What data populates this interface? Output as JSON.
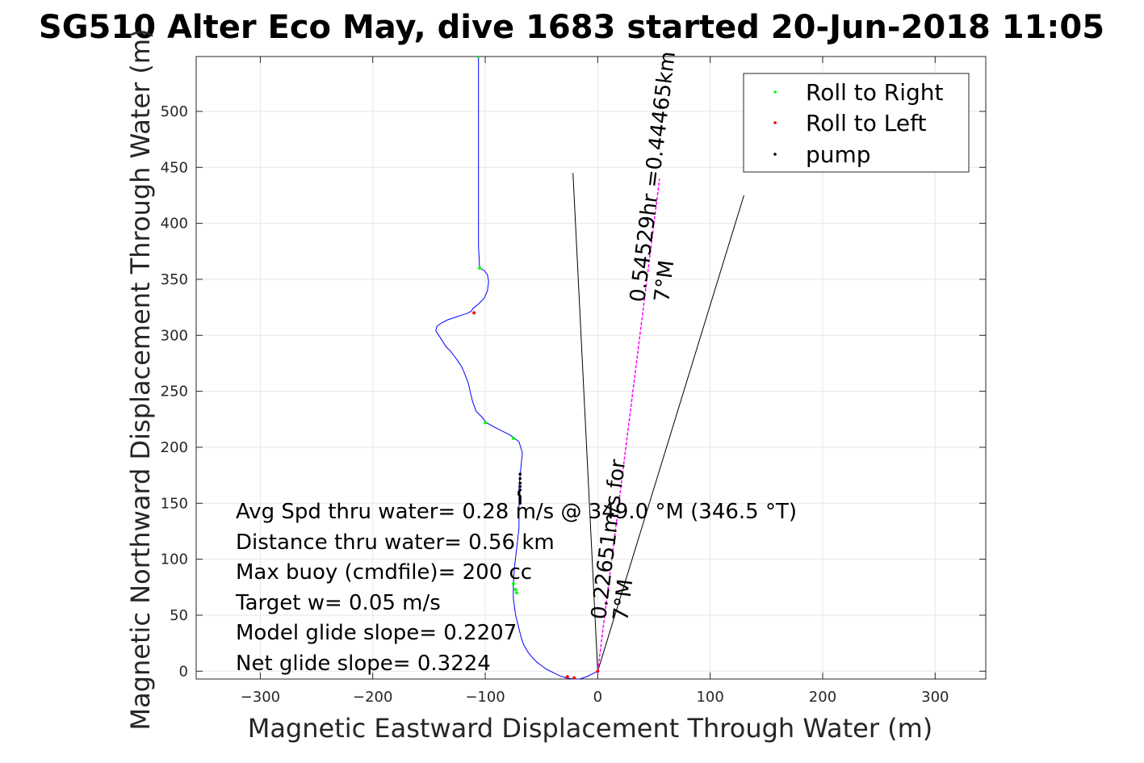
{
  "chart_data": {
    "type": "line",
    "title": "SG510 Alter Eco May, dive 1683 started 20-Jun-2018 11:05",
    "xlabel": "Magnetic Eastward Displacement Through Water (m)",
    "ylabel": "Magnetic Northward Displacement Through Water (m)",
    "xlim": [
      -357,
      345
    ],
    "ylim": [
      -7,
      549
    ],
    "xticks": [
      -300,
      -200,
      -100,
      0,
      100,
      200,
      300
    ],
    "yticks": [
      0,
      50,
      100,
      150,
      200,
      250,
      300,
      350,
      400,
      450,
      500
    ],
    "grid": true,
    "legend": {
      "position": "top-right",
      "entries": [
        {
          "label": "Roll to Right",
          "color": "#00ff00",
          "marker": "dot"
        },
        {
          "label": "Roll to Left",
          "color": "#ff0000",
          "marker": "dot"
        },
        {
          "label": "pump",
          "color": "#000000",
          "marker": "dot"
        }
      ]
    },
    "series": [
      {
        "color": "#0000ff",
        "x": [
          0,
          -4,
          -10,
          -16,
          -22,
          -28,
          -34,
          -40,
          -46,
          -50,
          -54,
          -58,
          -62,
          -66,
          -68,
          -70,
          -73,
          -75,
          -75,
          -74,
          -72,
          -70,
          -70,
          -70,
          -70,
          -69,
          -68,
          -67,
          -70,
          -74,
          -78,
          -84,
          -92,
          -99,
          -103,
          -108,
          -111,
          -113,
          -115,
          -118,
          -121,
          -125,
          -128,
          -131,
          -135,
          -140,
          -144,
          -143,
          -139,
          -133,
          -127,
          -121,
          -115,
          -112,
          -111,
          -106,
          -101,
          -98,
          -97,
          -98,
          -101,
          -105,
          -106,
          -106,
          -106,
          -106,
          -106,
          -106,
          -106,
          -106,
          -106,
          -106
        ],
        "y": [
          0,
          -2,
          -5,
          -7,
          -7,
          -6,
          -4,
          -1,
          2,
          5,
          8,
          12,
          17,
          24,
          30,
          38,
          50,
          65,
          78,
          93,
          110,
          128,
          145,
          158,
          165,
          175,
          185,
          195,
          205,
          208,
          211,
          214,
          218,
          222,
          227,
          232,
          240,
          248,
          257,
          265,
          272,
          278,
          282,
          286,
          290,
          298,
          304,
          308,
          311,
          314,
          316,
          318,
          320,
          322,
          324,
          328,
          333,
          340,
          348,
          354,
          358,
          360,
          380,
          400,
          420,
          440,
          460,
          480,
          500,
          520,
          540,
          549
        ]
      },
      {
        "color": "#ff00ff",
        "x": [
          0,
          55
        ],
        "y": [
          0,
          440
        ]
      }
    ],
    "guide_lines": [
      {
        "color": "#000000",
        "x": [
          0,
          -22
        ],
        "y": [
          0,
          445
        ]
      },
      {
        "color": "#000000",
        "x": [
          0,
          130
        ],
        "y": [
          0,
          425
        ]
      }
    ],
    "markers": {
      "roll_right": {
        "color": "#00ff00",
        "x": [
          -106,
          -105,
          -100,
          -75,
          -75,
          -73,
          -72
        ],
        "y": [
          549,
          360,
          222,
          208,
          78,
          73,
          70
        ]
      },
      "roll_left": {
        "color": "#ff0000",
        "x": [
          -110,
          -27,
          -21,
          0
        ],
        "y": [
          320,
          -5,
          -6,
          0
        ]
      },
      "pump": {
        "color": "#000000",
        "x": [
          -69,
          -69,
          -69,
          -69,
          -69,
          -70,
          -70,
          -69,
          -69,
          -69,
          -69
        ],
        "y": [
          176,
          172,
          168,
          165,
          162,
          160,
          158,
          156,
          154,
          152,
          150
        ]
      }
    },
    "annotations": [
      "Avg Spd thru water=  0.28 m/s @ 349.0 °M (346.5 °T)",
      "Distance thru water=  0.56 km",
      "Max buoy (cmdfile)= 200 cc",
      "Target w= 0.05 m/s",
      "Model glide slope= 0.2207",
      "Net glide slope= 0.3224"
    ],
    "rotated_labels": {
      "current": "0.54529hr =0.44465km",
      "current_dir": "7°M",
      "glider": "0.22651m/s for",
      "glider_dir": "7°M"
    }
  }
}
